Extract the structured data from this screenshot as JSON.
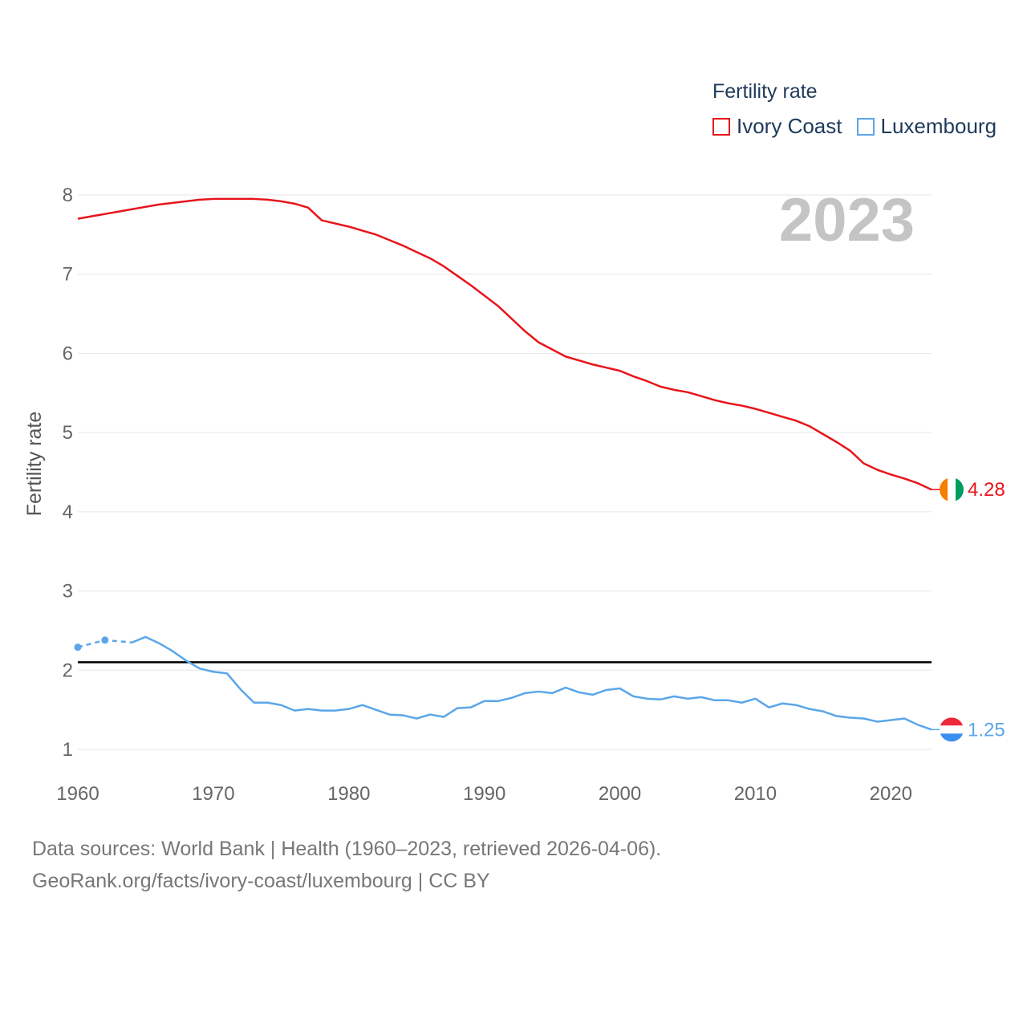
{
  "legend": {
    "title": "Fertility rate",
    "items": [
      {
        "label": "Ivory Coast",
        "color": "#e8141b"
      },
      {
        "label": "Luxembourg",
        "color": "#5aa6ea"
      }
    ]
  },
  "year_badge": "2023",
  "footer": {
    "line1": "Data sources: World Bank | Health (1960–2023, retrieved 2026-04-06).",
    "line2": "GeoRank.org/facts/ivory-coast/luxembourg | CC BY"
  },
  "chart_data": {
    "type": "line",
    "title": "",
    "xlabel": "",
    "ylabel": "Fertility rate",
    "xlim": [
      1960,
      2023
    ],
    "ylim": [
      1,
      8
    ],
    "x_ticks": [
      "1960",
      "1970",
      "1980",
      "1990",
      "2000",
      "2010",
      "2020"
    ],
    "y_ticks": [
      "1",
      "2",
      "3",
      "4",
      "5",
      "6",
      "7",
      "8"
    ],
    "grid": true,
    "reference_line": {
      "y": 2.1,
      "color": "#000000"
    },
    "series": [
      {
        "name": "Ivory Coast",
        "color": "#e8141b",
        "end_label": "4.28",
        "flag": [
          "#f77f00",
          "#ffffff",
          "#009e60"
        ],
        "points": [
          [
            1960,
            7.7
          ],
          [
            1961,
            7.73
          ],
          [
            1962,
            7.76
          ],
          [
            1963,
            7.79
          ],
          [
            1964,
            7.82
          ],
          [
            1965,
            7.85
          ],
          [
            1966,
            7.88
          ],
          [
            1967,
            7.9
          ],
          [
            1968,
            7.92
          ],
          [
            1969,
            7.94
          ],
          [
            1970,
            7.95
          ],
          [
            1971,
            7.95
          ],
          [
            1972,
            7.95
          ],
          [
            1973,
            7.95
          ],
          [
            1974,
            7.94
          ],
          [
            1975,
            7.92
          ],
          [
            1976,
            7.89
          ],
          [
            1977,
            7.84
          ],
          [
            1978,
            7.68
          ],
          [
            1979,
            7.64
          ],
          [
            1980,
            7.6
          ],
          [
            1981,
            7.55
          ],
          [
            1982,
            7.5
          ],
          [
            1983,
            7.43
          ],
          [
            1984,
            7.36
          ],
          [
            1985,
            7.28
          ],
          [
            1986,
            7.2
          ],
          [
            1987,
            7.1
          ],
          [
            1988,
            6.98
          ],
          [
            1989,
            6.86
          ],
          [
            1990,
            6.73
          ],
          [
            1991,
            6.6
          ],
          [
            1992,
            6.44
          ],
          [
            1993,
            6.28
          ],
          [
            1994,
            6.14
          ],
          [
            1995,
            6.05
          ],
          [
            1996,
            5.96
          ],
          [
            1997,
            5.91
          ],
          [
            1998,
            5.86
          ],
          [
            1999,
            5.82
          ],
          [
            2000,
            5.78
          ],
          [
            2001,
            5.71
          ],
          [
            2002,
            5.65
          ],
          [
            2003,
            5.58
          ],
          [
            2004,
            5.54
          ],
          [
            2005,
            5.51
          ],
          [
            2006,
            5.46
          ],
          [
            2007,
            5.41
          ],
          [
            2008,
            5.37
          ],
          [
            2009,
            5.34
          ],
          [
            2010,
            5.3
          ],
          [
            2011,
            5.25
          ],
          [
            2012,
            5.2
          ],
          [
            2013,
            5.15
          ],
          [
            2014,
            5.08
          ],
          [
            2015,
            4.98
          ],
          [
            2016,
            4.88
          ],
          [
            2017,
            4.77
          ],
          [
            2018,
            4.61
          ],
          [
            2019,
            4.53
          ],
          [
            2020,
            4.47
          ],
          [
            2021,
            4.42
          ],
          [
            2022,
            4.36
          ],
          [
            2023,
            4.28
          ]
        ]
      },
      {
        "name": "Luxembourg",
        "color": "#5aa6ea",
        "end_label": "1.25",
        "flag": [
          "#ed2939",
          "#ffffff",
          "#3a8ef0"
        ],
        "estimated_points": [
          [
            1960,
            2.29
          ],
          [
            1962,
            2.38
          ],
          [
            1964,
            2.35
          ]
        ],
        "points": [
          [
            1964,
            2.35
          ],
          [
            1965,
            2.42
          ],
          [
            1966,
            2.34
          ],
          [
            1967,
            2.24
          ],
          [
            1968,
            2.12
          ],
          [
            1969,
            2.02
          ],
          [
            1970,
            1.98
          ],
          [
            1971,
            1.96
          ],
          [
            1972,
            1.76
          ],
          [
            1973,
            1.59
          ],
          [
            1974,
            1.59
          ],
          [
            1975,
            1.56
          ],
          [
            1976,
            1.49
          ],
          [
            1977,
            1.51
          ],
          [
            1978,
            1.49
          ],
          [
            1979,
            1.49
          ],
          [
            1980,
            1.51
          ],
          [
            1981,
            1.56
          ],
          [
            1982,
            1.5
          ],
          [
            1983,
            1.44
          ],
          [
            1984,
            1.43
          ],
          [
            1985,
            1.39
          ],
          [
            1986,
            1.44
          ],
          [
            1987,
            1.41
          ],
          [
            1988,
            1.52
          ],
          [
            1989,
            1.53
          ],
          [
            1990,
            1.61
          ],
          [
            1991,
            1.61
          ],
          [
            1992,
            1.65
          ],
          [
            1993,
            1.71
          ],
          [
            1994,
            1.73
          ],
          [
            1995,
            1.71
          ],
          [
            1996,
            1.78
          ],
          [
            1997,
            1.72
          ],
          [
            1998,
            1.69
          ],
          [
            1999,
            1.75
          ],
          [
            2000,
            1.77
          ],
          [
            2001,
            1.67
          ],
          [
            2002,
            1.64
          ],
          [
            2003,
            1.63
          ],
          [
            2004,
            1.67
          ],
          [
            2005,
            1.64
          ],
          [
            2006,
            1.66
          ],
          [
            2007,
            1.62
          ],
          [
            2008,
            1.62
          ],
          [
            2009,
            1.59
          ],
          [
            2010,
            1.64
          ],
          [
            2011,
            1.53
          ],
          [
            2012,
            1.58
          ],
          [
            2013,
            1.56
          ],
          [
            2014,
            1.51
          ],
          [
            2015,
            1.48
          ],
          [
            2016,
            1.42
          ],
          [
            2017,
            1.4
          ],
          [
            2018,
            1.39
          ],
          [
            2019,
            1.35
          ],
          [
            2020,
            1.37
          ],
          [
            2021,
            1.39
          ],
          [
            2022,
            1.31
          ],
          [
            2023,
            1.25
          ]
        ]
      }
    ]
  }
}
